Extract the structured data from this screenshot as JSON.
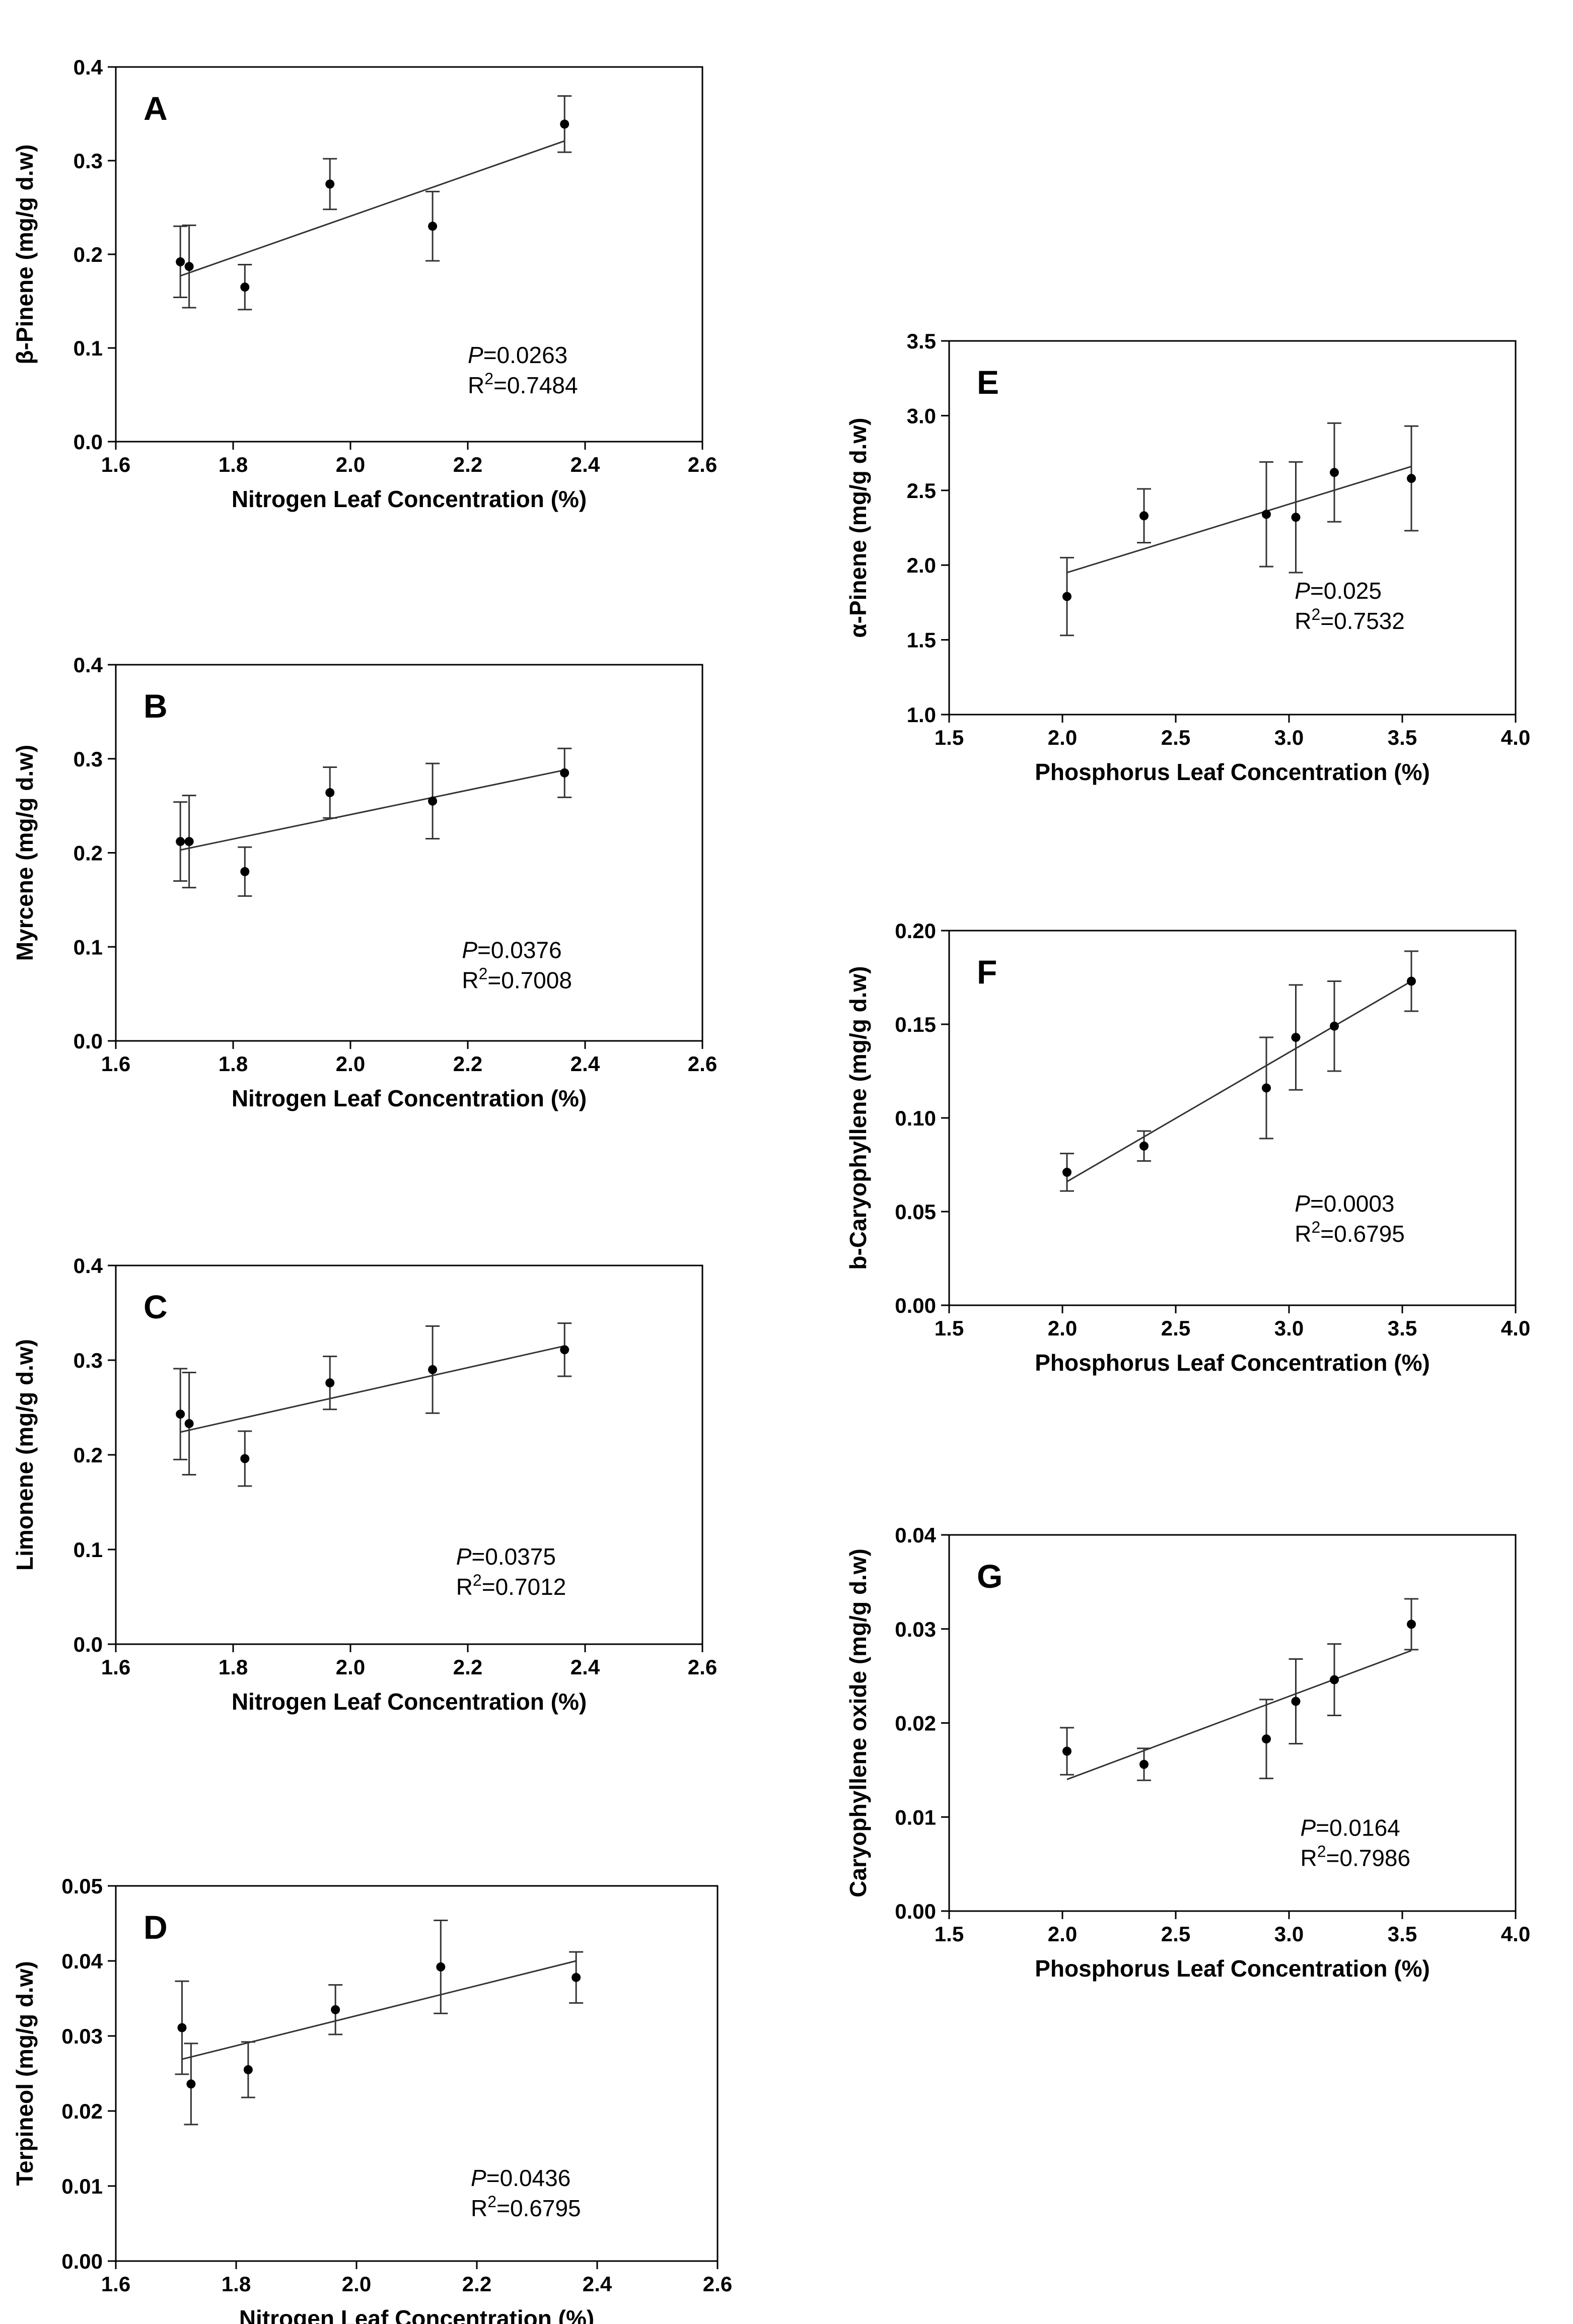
{
  "chart_data": [
    {
      "type": "scatter",
      "panel": "A",
      "ylabel": "β-Pinene (mg/g d.w)",
      "xlabel": "Nitrogen Leaf Concentration (%)",
      "xlim": [
        1.6,
        2.6
      ],
      "ylim": [
        0,
        0.4
      ],
      "x_ticks": [
        1.6,
        1.8,
        2.0,
        2.2,
        2.4,
        2.6
      ],
      "x_tick_labels": [
        "1.6",
        "1.8",
        "2.0",
        "2.2",
        "2.4",
        "2.6"
      ],
      "y_ticks": [
        0,
        0.1,
        0.2,
        0.3,
        0.4
      ],
      "y_tick_labels": [
        "0.0",
        "0.1",
        "0.2",
        "0.3",
        "0.4"
      ],
      "x": [
        1.71,
        1.725,
        1.82,
        1.965,
        2.14,
        2.365
      ],
      "y": [
        0.192,
        0.187,
        0.165,
        0.275,
        0.23,
        0.339
      ],
      "error": [
        0.038,
        0.044,
        0.024,
        0.027,
        0.037,
        0.03
      ],
      "fit_line": {
        "x": [
          1.71,
          2.365
        ],
        "y": [
          0.177,
          0.321
        ]
      },
      "stats": {
        "p_label": "P",
        "p_value": "=0.0263",
        "r2_label": "R",
        "r2_sup": "2",
        "r2_value": "=0.7484"
      }
    },
    {
      "type": "scatter",
      "panel": "B",
      "ylabel": "Myrcene (mg/g d.w)",
      "xlabel": "Nitrogen Leaf Concentration (%)",
      "xlim": [
        1.6,
        2.6
      ],
      "ylim": [
        0,
        0.4
      ],
      "x_ticks": [
        1.6,
        1.8,
        2.0,
        2.2,
        2.4,
        2.6
      ],
      "x_tick_labels": [
        "1.6",
        "1.8",
        "2.0",
        "2.2",
        "2.4",
        "2.6"
      ],
      "y_ticks": [
        0,
        0.1,
        0.2,
        0.3,
        0.4
      ],
      "y_tick_labels": [
        "0.0",
        "0.1",
        "0.2",
        "0.3",
        "0.4"
      ],
      "x": [
        1.71,
        1.725,
        1.82,
        1.965,
        2.14,
        2.365
      ],
      "y": [
        0.212,
        0.212,
        0.18,
        0.264,
        0.255,
        0.285
      ],
      "error": [
        0.042,
        0.049,
        0.026,
        0.027,
        0.04,
        0.026
      ],
      "fit_line": {
        "x": [
          1.71,
          2.365
        ],
        "y": [
          0.203,
          0.288
        ]
      },
      "stats": {
        "p_label": "P",
        "p_value": "=0.0376",
        "r2_label": "R",
        "r2_sup": "2",
        "r2_value": "=0.7008"
      }
    },
    {
      "type": "scatter",
      "panel": "C",
      "ylabel": "Limonene (mg/g d.w)",
      "xlabel": "Nitrogen Leaf Concentration (%)",
      "xlim": [
        1.6,
        2.6
      ],
      "ylim": [
        0,
        0.4
      ],
      "x_ticks": [
        1.6,
        1.8,
        2.0,
        2.2,
        2.4,
        2.6
      ],
      "x_tick_labels": [
        "1.6",
        "1.8",
        "2.0",
        "2.2",
        "2.4",
        "2.6"
      ],
      "y_ticks": [
        0,
        0.1,
        0.2,
        0.3,
        0.4
      ],
      "y_tick_labels": [
        "0.0",
        "0.1",
        "0.2",
        "0.3",
        "0.4"
      ],
      "x": [
        1.71,
        1.725,
        1.82,
        1.965,
        2.14,
        2.365
      ],
      "y": [
        0.243,
        0.233,
        0.196,
        0.276,
        0.29,
        0.311
      ],
      "error": [
        0.048,
        0.054,
        0.029,
        0.028,
        0.046,
        0.028
      ],
      "fit_line": {
        "x": [
          1.71,
          2.365
        ],
        "y": [
          0.224,
          0.315
        ]
      },
      "stats": {
        "p_label": "P",
        "p_value": "=0.0375",
        "r2_label": "R",
        "r2_sup": "2",
        "r2_value": "=0.7012"
      }
    },
    {
      "type": "scatter",
      "panel": "D",
      "ylabel": "Terpineol (mg/g d.w)",
      "xlabel": "Nitrogen Leaf Concentration (%)",
      "xlim": [
        1.6,
        2.6
      ],
      "ylim": [
        0,
        0.05
      ],
      "x_ticks": [
        1.6,
        1.8,
        2.0,
        2.2,
        2.4,
        2.6
      ],
      "x_tick_labels": [
        "1.6",
        "1.8",
        "2.0",
        "2.2",
        "2.4",
        "2.6"
      ],
      "y_ticks": [
        0,
        0.01,
        0.02,
        0.03,
        0.04,
        0.05
      ],
      "y_tick_labels": [
        "0.00",
        "0.01",
        "0.02",
        "0.03",
        "0.04",
        "0.05"
      ],
      "x": [
        1.71,
        1.725,
        1.82,
        1.965,
        2.14,
        2.365
      ],
      "y": [
        0.0311,
        0.0236,
        0.0255,
        0.0335,
        0.0392,
        0.0378
      ],
      "error": [
        0.0062,
        0.0054,
        0.0037,
        0.0033,
        0.0062,
        0.0034
      ],
      "fit_line": {
        "x": [
          1.71,
          2.365
        ],
        "y": [
          0.0269,
          0.04
        ]
      },
      "stats": {
        "p_label": "P",
        "p_value": "=0.0436",
        "r2_label": "R",
        "r2_sup": "2",
        "r2_value": "=0.6795"
      }
    },
    {
      "type": "scatter",
      "panel": "E",
      "ylabel": "α-Pinene (mg/g d.w)",
      "xlabel": "Phosphorus Leaf Concentration (%)",
      "xlim": [
        1.5,
        4.0
      ],
      "ylim": [
        1.0,
        3.5
      ],
      "x_ticks": [
        1.5,
        2.0,
        2.5,
        3.0,
        3.5,
        4.0
      ],
      "x_tick_labels": [
        "1.5",
        "2.0",
        "2.5",
        "3.0",
        "3.5",
        "4.0"
      ],
      "y_ticks": [
        1.0,
        1.5,
        2.0,
        2.5,
        3.0,
        3.5
      ],
      "y_tick_labels": [
        "1.0",
        "1.5",
        "2.0",
        "2.5",
        "3.0",
        "3.5"
      ],
      "x": [
        2.02,
        2.36,
        2.9,
        3.03,
        3.2,
        3.54
      ],
      "y": [
        1.79,
        2.33,
        2.34,
        2.32,
        2.62,
        2.58
      ],
      "error": [
        0.26,
        0.18,
        0.35,
        0.37,
        0.33,
        0.35
      ],
      "fit_line": {
        "x": [
          2.02,
          3.54
        ],
        "y": [
          1.95,
          2.66
        ]
      },
      "stats": {
        "p_label": "P",
        "p_value": "=0.025",
        "r2_label": "R",
        "r2_sup": "2",
        "r2_value": "=0.7532"
      }
    },
    {
      "type": "scatter",
      "panel": "F",
      "ylabel": "b-Caryophyllene (mg/g d.w)",
      "xlabel": "Phosphorus Leaf Concentration (%)",
      "xlim": [
        1.5,
        4.0
      ],
      "ylim": [
        0,
        0.2
      ],
      "x_ticks": [
        1.5,
        2.0,
        2.5,
        3.0,
        3.5,
        4.0
      ],
      "x_tick_labels": [
        "1.5",
        "2.0",
        "2.5",
        "3.0",
        "3.5",
        "4.0"
      ],
      "y_ticks": [
        0,
        0.05,
        0.1,
        0.15,
        0.2
      ],
      "y_tick_labels": [
        "0.00",
        "0.05",
        "0.10",
        "0.15",
        "0.20"
      ],
      "x": [
        2.02,
        2.36,
        2.9,
        3.03,
        3.2,
        3.54
      ],
      "y": [
        0.071,
        0.085,
        0.116,
        0.143,
        0.149,
        0.173
      ],
      "error": [
        0.01,
        0.008,
        0.027,
        0.028,
        0.024,
        0.016
      ],
      "fit_line": {
        "x": [
          2.02,
          3.54
        ],
        "y": [
          0.066,
          0.173
        ]
      },
      "stats": {
        "p_label": "P",
        "p_value": "=0.0003",
        "r2_label": "R",
        "r2_sup": "2",
        "r2_value": "=0.6795"
      }
    },
    {
      "type": "scatter",
      "panel": "G",
      "ylabel": "Caryophyllene oxide (mg/g d.w)",
      "xlabel": "Phosphorus Leaf Concentration (%)",
      "xlim": [
        1.5,
        4.0
      ],
      "ylim": [
        0,
        0.04
      ],
      "x_ticks": [
        1.5,
        2.0,
        2.5,
        3.0,
        3.5,
        4.0
      ],
      "x_tick_labels": [
        "1.5",
        "2.0",
        "2.5",
        "3.0",
        "3.5",
        "4.0"
      ],
      "y_ticks": [
        0,
        0.01,
        0.02,
        0.03,
        0.04
      ],
      "y_tick_labels": [
        "0.00",
        "0.01",
        "0.02",
        "0.03",
        "0.04"
      ],
      "x": [
        2.02,
        2.36,
        2.9,
        3.03,
        3.2,
        3.54
      ],
      "y": [
        0.017,
        0.0156,
        0.0183,
        0.0223,
        0.0246,
        0.0305
      ],
      "error": [
        0.0025,
        0.0017,
        0.0042,
        0.0045,
        0.0038,
        0.0027
      ],
      "fit_line": {
        "x": [
          2.02,
          3.54
        ],
        "y": [
          0.014,
          0.0277
        ]
      },
      "stats": {
        "p_label": "P",
        "p_value": "=0.0164",
        "r2_label": "R",
        "r2_sup": "2",
        "r2_value": "=0.7986"
      }
    }
  ]
}
